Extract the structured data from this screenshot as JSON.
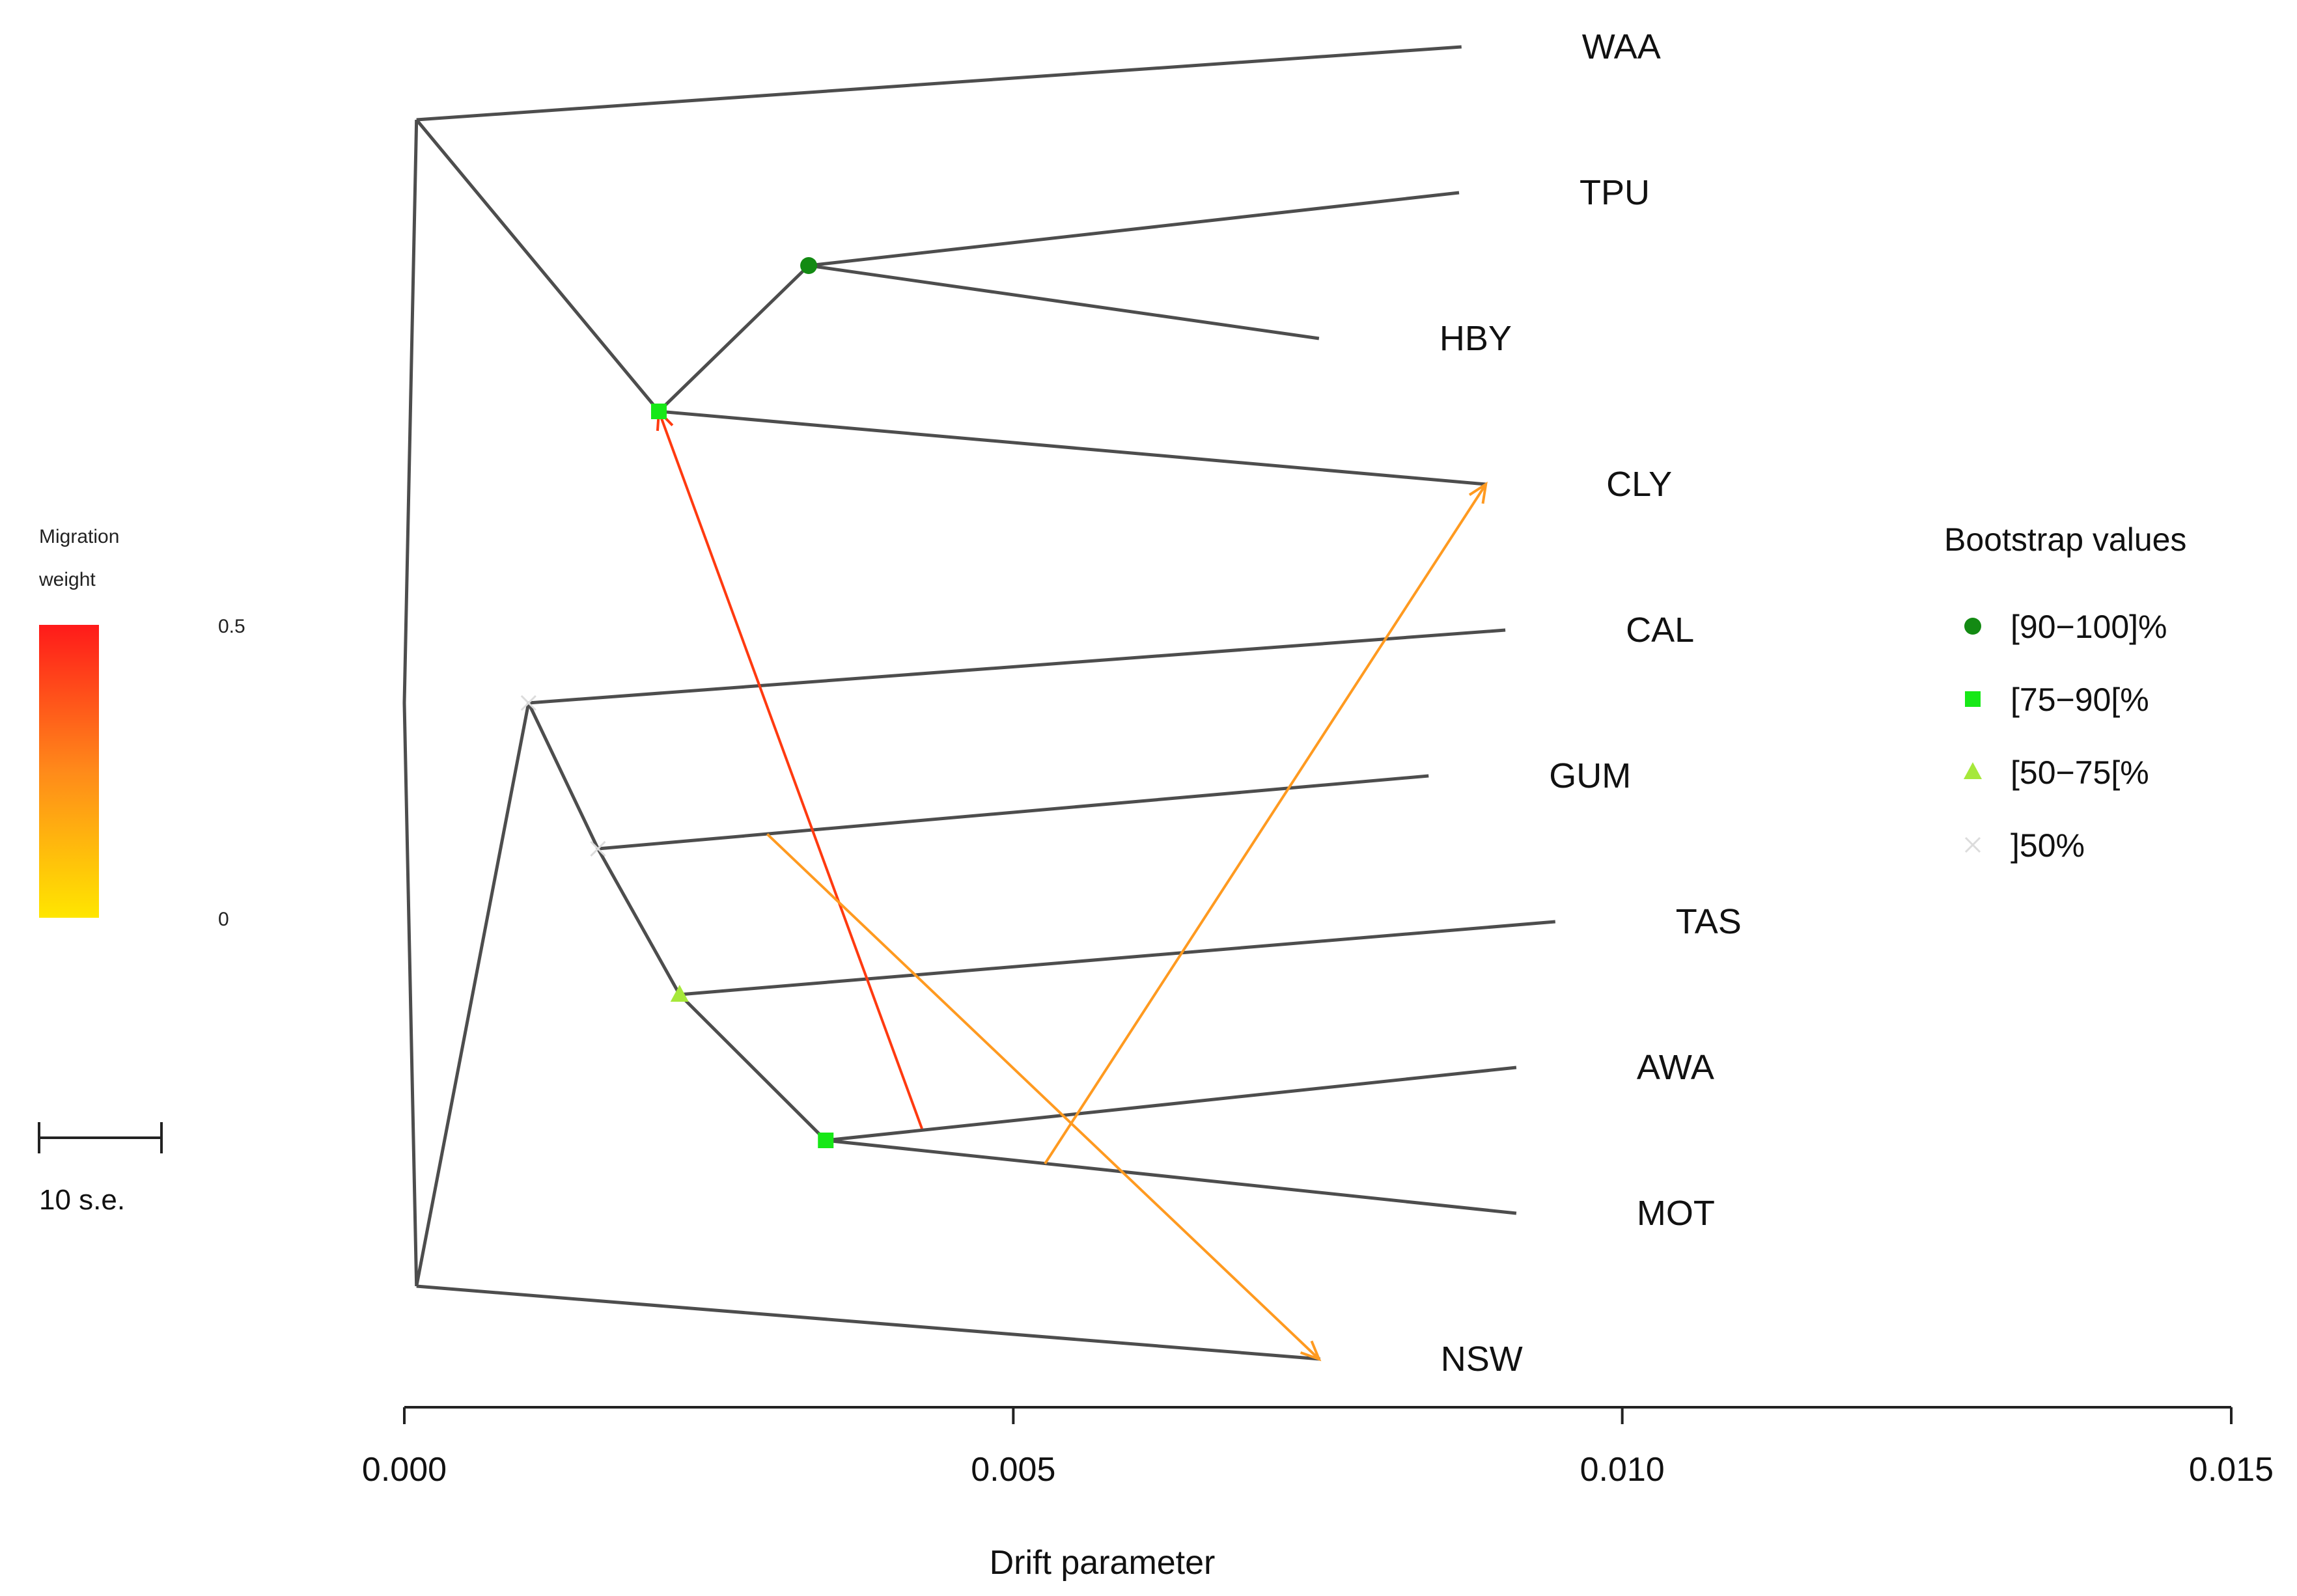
{
  "chart_data": {
    "type": "tree",
    "xlabel": "Drift parameter",
    "xlim": [
      0,
      0.015
    ],
    "x_ticks": [
      "0.000",
      "0.005",
      "0.010",
      "0.015"
    ],
    "taxa": [
      "WAA",
      "TPU",
      "HBY",
      "CLY",
      "CAL",
      "GUM",
      "TAS",
      "AWA",
      "MOT",
      "NSW"
    ],
    "nodes": [
      {
        "id": "root",
        "drift": 0.0
      },
      {
        "id": "n_upper",
        "drift": 0.0001,
        "row": 0.5
      },
      {
        "id": "n_lower",
        "drift": 0.0001,
        "row": 8.5
      },
      {
        "id": "n_tpu_hby",
        "drift": 0.00332,
        "row": 1.5,
        "support": "[90−100]%"
      },
      {
        "id": "n_tpu_cly",
        "drift": 0.00209,
        "row": 2.5,
        "support": "[75−90[%"
      },
      {
        "id": "n_cal",
        "drift": 0.00102,
        "row": 4.5,
        "support": "]50%"
      },
      {
        "id": "n_gum",
        "drift": 0.00159,
        "row": 5.5,
        "support": "]50%"
      },
      {
        "id": "n_tas",
        "drift": 0.00226,
        "row": 6.5,
        "support": "[50−75[%"
      },
      {
        "id": "n_awa_mot",
        "drift": 0.00346,
        "row": 7.5,
        "support": "[75−90[%"
      },
      {
        "id": "WAA",
        "drift": 0.00868,
        "row": 0
      },
      {
        "id": "TPU",
        "drift": 0.00866,
        "row": 1
      },
      {
        "id": "HBY",
        "drift": 0.00751,
        "row": 2
      },
      {
        "id": "CLY",
        "drift": 0.00888,
        "row": 3
      },
      {
        "id": "CAL",
        "drift": 0.00904,
        "row": 4
      },
      {
        "id": "GUM",
        "drift": 0.00841,
        "row": 5
      },
      {
        "id": "TAS",
        "drift": 0.00945,
        "row": 6
      },
      {
        "id": "AWA",
        "drift": 0.00913,
        "row": 7
      },
      {
        "id": "MOT",
        "drift": 0.00913,
        "row": 8
      },
      {
        "id": "NSW",
        "drift": 0.00752,
        "row": 9
      }
    ],
    "edges": [
      [
        "root",
        "n_upper"
      ],
      [
        "root",
        "n_lower"
      ],
      [
        "n_upper",
        "WAA"
      ],
      [
        "n_upper",
        "n_tpu_cly"
      ],
      [
        "n_tpu_cly",
        "n_tpu_hby"
      ],
      [
        "n_tpu_cly",
        "CLY"
      ],
      [
        "n_tpu_hby",
        "TPU"
      ],
      [
        "n_tpu_hby",
        "HBY"
      ],
      [
        "n_lower",
        "n_cal"
      ],
      [
        "n_lower",
        "NSW"
      ],
      [
        "n_cal",
        "CAL"
      ],
      [
        "n_cal",
        "n_gum"
      ],
      [
        "n_gum",
        "GUM"
      ],
      [
        "n_gum",
        "n_tas"
      ],
      [
        "n_tas",
        "TAS"
      ],
      [
        "n_tas",
        "n_awa_mot"
      ],
      [
        "n_awa_mot",
        "AWA"
      ],
      [
        "n_awa_mot",
        "MOT"
      ]
    ],
    "migrations": [
      {
        "from_drift": 0.00425,
        "from_row": 7.42,
        "to_drift": 0.00209,
        "to_row": 2.5,
        "weight": 0.48,
        "color": "#ff3a10"
      },
      {
        "from_drift": 0.00298,
        "from_row": 5.4,
        "to_drift": 0.00751,
        "to_row": 9,
        "weight": 0.22,
        "color": "#ff9a20"
      },
      {
        "from_drift": 0.00526,
        "from_row": 7.66,
        "to_drift": 0.00888,
        "to_row": 3,
        "weight": 0.22,
        "color": "#ff9a20"
      }
    ],
    "bootstrap_legend": {
      "title": "Bootstrap values",
      "items": [
        {
          "label": "[90−100]%",
          "shape": "circle",
          "color": "#138a13"
        },
        {
          "label": "[75−90[%",
          "shape": "square",
          "color": "#17e817"
        },
        {
          "label": "[50−75[%",
          "shape": "triangle",
          "color": "#a6e83a"
        },
        {
          "label": "]50%",
          "shape": "cross",
          "color": "#dcdcdc"
        }
      ]
    },
    "migration_legend": {
      "title_line1": "Migration",
      "title_line2": "weight",
      "max_label": "0.5",
      "min_label": "0",
      "color_top": "#ff1a1a",
      "color_bottom": "#ffe600"
    },
    "scale_bar": {
      "label": "10 s.e."
    }
  }
}
